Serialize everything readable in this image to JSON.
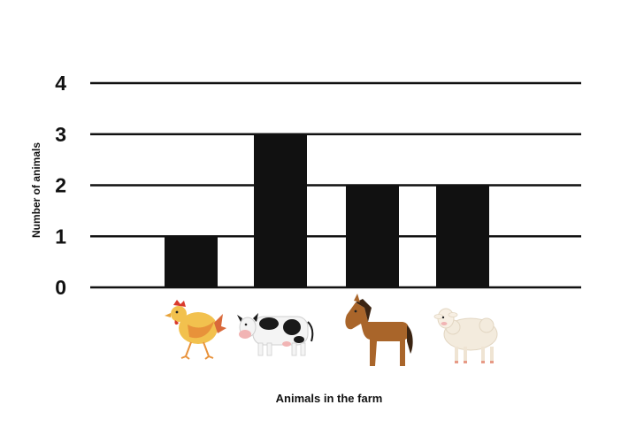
{
  "chart_data": {
    "type": "bar",
    "categories": [
      "chicken",
      "cow",
      "horse",
      "sheep"
    ],
    "values": [
      1,
      3,
      2,
      2
    ],
    "title": "",
    "xlabel": "Animals in the farm",
    "ylabel": "Number of animals",
    "ylim": [
      0,
      4
    ],
    "yticks": [
      0,
      1,
      2,
      3,
      4
    ],
    "grid": true,
    "bar_color": "#111111",
    "x_tick_style": "animal pictures"
  },
  "icons": [
    "chicken-icon",
    "cow-icon",
    "horse-icon",
    "sheep-icon"
  ]
}
